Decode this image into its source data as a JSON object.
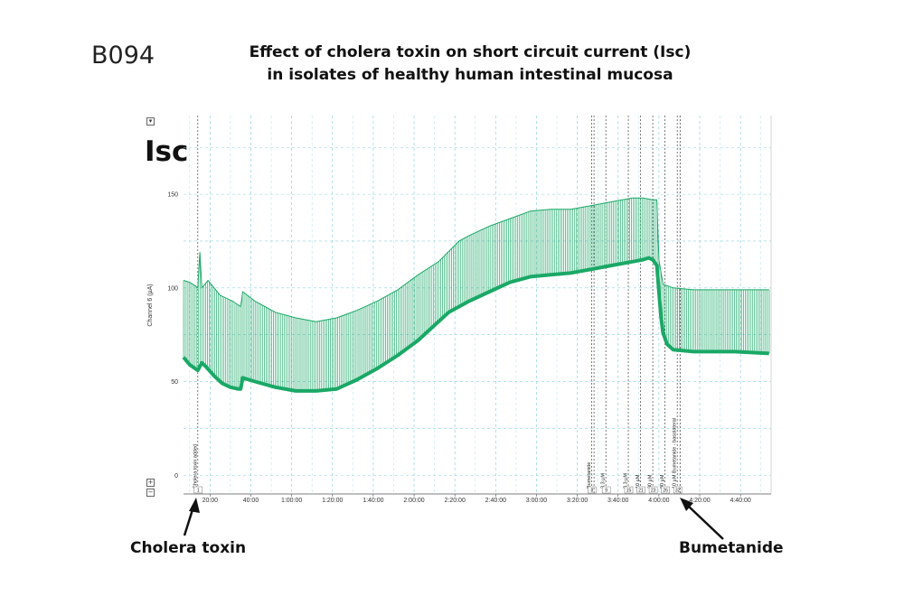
{
  "figure": {
    "code": "B094",
    "title_line1": "Effect of cholera toxin on short circuit current (Isc)",
    "title_line2": "in isolates of healthy human intestinal mucosa",
    "panel_label": "Isc",
    "annotation_left": "Cholera toxin",
    "annotation_right": "Bumetanide",
    "controls": {
      "collapse": "▾",
      "plus": "+",
      "minus": "−"
    }
  },
  "chart_data": {
    "type": "line",
    "ylabel": "Channel 6 (µA)",
    "xlabel": "",
    "ylim": [
      -10,
      192
    ],
    "xlim_minutes": [
      0,
      288
    ],
    "yticks": [
      0,
      50,
      100,
      150
    ],
    "xticks": [
      {
        "t": 13,
        "label": "20:00"
      },
      {
        "t": 33,
        "label": "40:00"
      },
      {
        "t": 53,
        "label": "1:00:00"
      },
      {
        "t": 73,
        "label": "1:20:00"
      },
      {
        "t": 93,
        "label": "1:40:00"
      },
      {
        "t": 113,
        "label": "2:00:00"
      },
      {
        "t": 133,
        "label": "2:20:00"
      },
      {
        "t": 153,
        "label": "2:40:00"
      },
      {
        "t": 173,
        "label": "3:00:00"
      },
      {
        "t": 193,
        "label": "3:20:00"
      },
      {
        "t": 213,
        "label": "3:40:00"
      },
      {
        "t": 233,
        "label": "4:00:00"
      },
      {
        "t": 253,
        "label": "4:20:00"
      },
      {
        "t": 273,
        "label": "4:40:00"
      }
    ],
    "grid": true,
    "series": [
      {
        "name": "baseline",
        "color": "#1aa866",
        "points": [
          [
            0,
            63
          ],
          [
            3,
            59
          ],
          [
            7,
            56
          ],
          [
            9,
            60
          ],
          [
            11,
            58
          ],
          [
            15,
            53
          ],
          [
            19,
            49
          ],
          [
            23,
            47
          ],
          [
            27,
            46
          ],
          [
            28,
            46
          ],
          [
            29,
            52
          ],
          [
            35,
            50
          ],
          [
            45,
            47
          ],
          [
            55,
            45
          ],
          [
            65,
            45
          ],
          [
            75,
            46
          ],
          [
            85,
            51
          ],
          [
            95,
            57
          ],
          [
            105,
            64
          ],
          [
            115,
            72
          ],
          [
            120,
            77
          ],
          [
            130,
            87
          ],
          [
            140,
            93
          ],
          [
            150,
            98
          ],
          [
            160,
            103
          ],
          [
            170,
            106
          ],
          [
            180,
            107
          ],
          [
            190,
            108
          ],
          [
            200,
            110
          ],
          [
            210,
            112
          ],
          [
            220,
            114
          ],
          [
            225,
            115
          ],
          [
            228,
            116
          ],
          [
            230,
            115
          ],
          [
            232,
            112
          ],
          [
            233,
            98
          ],
          [
            234,
            85
          ],
          [
            235,
            76
          ],
          [
            237,
            70
          ],
          [
            240,
            67
          ],
          [
            250,
            66
          ],
          [
            260,
            66
          ],
          [
            270,
            66
          ],
          [
            287,
            65
          ]
        ]
      },
      {
        "name": "peak",
        "color": "#1aa866",
        "points": [
          [
            0,
            104
          ],
          [
            3,
            103
          ],
          [
            6,
            101
          ],
          [
            7,
            100
          ],
          [
            8,
            119
          ],
          [
            9,
            100
          ],
          [
            12,
            104
          ],
          [
            18,
            96
          ],
          [
            24,
            93
          ],
          [
            28,
            90
          ],
          [
            29,
            98
          ],
          [
            35,
            93
          ],
          [
            45,
            87
          ],
          [
            55,
            84
          ],
          [
            65,
            82
          ],
          [
            75,
            84
          ],
          [
            85,
            88
          ],
          [
            95,
            93
          ],
          [
            105,
            99
          ],
          [
            115,
            107
          ],
          [
            125,
            114
          ],
          [
            135,
            125
          ],
          [
            140,
            128
          ],
          [
            150,
            133
          ],
          [
            160,
            137
          ],
          [
            170,
            141
          ],
          [
            180,
            142
          ],
          [
            190,
            142
          ],
          [
            200,
            144
          ],
          [
            210,
            146
          ],
          [
            220,
            148
          ],
          [
            225,
            148
          ],
          [
            230,
            147
          ],
          [
            232,
            147
          ],
          [
            233,
            115
          ],
          [
            235,
            102
          ],
          [
            240,
            100
          ],
          [
            250,
            99
          ],
          [
            260,
            99
          ],
          [
            270,
            99
          ],
          [
            287,
            99
          ]
        ]
      }
    ],
    "event_markers": [
      {
        "t": 7,
        "label": "Cholera toxin added",
        "num": "1"
      },
      {
        "t": 200,
        "label": "Bumetanide",
        "num": "8"
      },
      {
        "t": 201.2,
        "label": "",
        "num": ""
      },
      {
        "t": 207,
        "label": "3.3 µM",
        "num": "9"
      },
      {
        "t": 218,
        "label": "3.3 µM",
        "num": "15"
      },
      {
        "t": 224,
        "label": "10 µM",
        "num": "21"
      },
      {
        "t": 230,
        "label": "30 µM",
        "num": "23"
      },
      {
        "t": 236,
        "label": "90 µM",
        "num": "26"
      },
      {
        "t": 242,
        "label": "10 µM Bumetanide - basolateral",
        "num": "32"
      },
      {
        "t": 243.5,
        "label": "",
        "num": ""
      }
    ]
  }
}
